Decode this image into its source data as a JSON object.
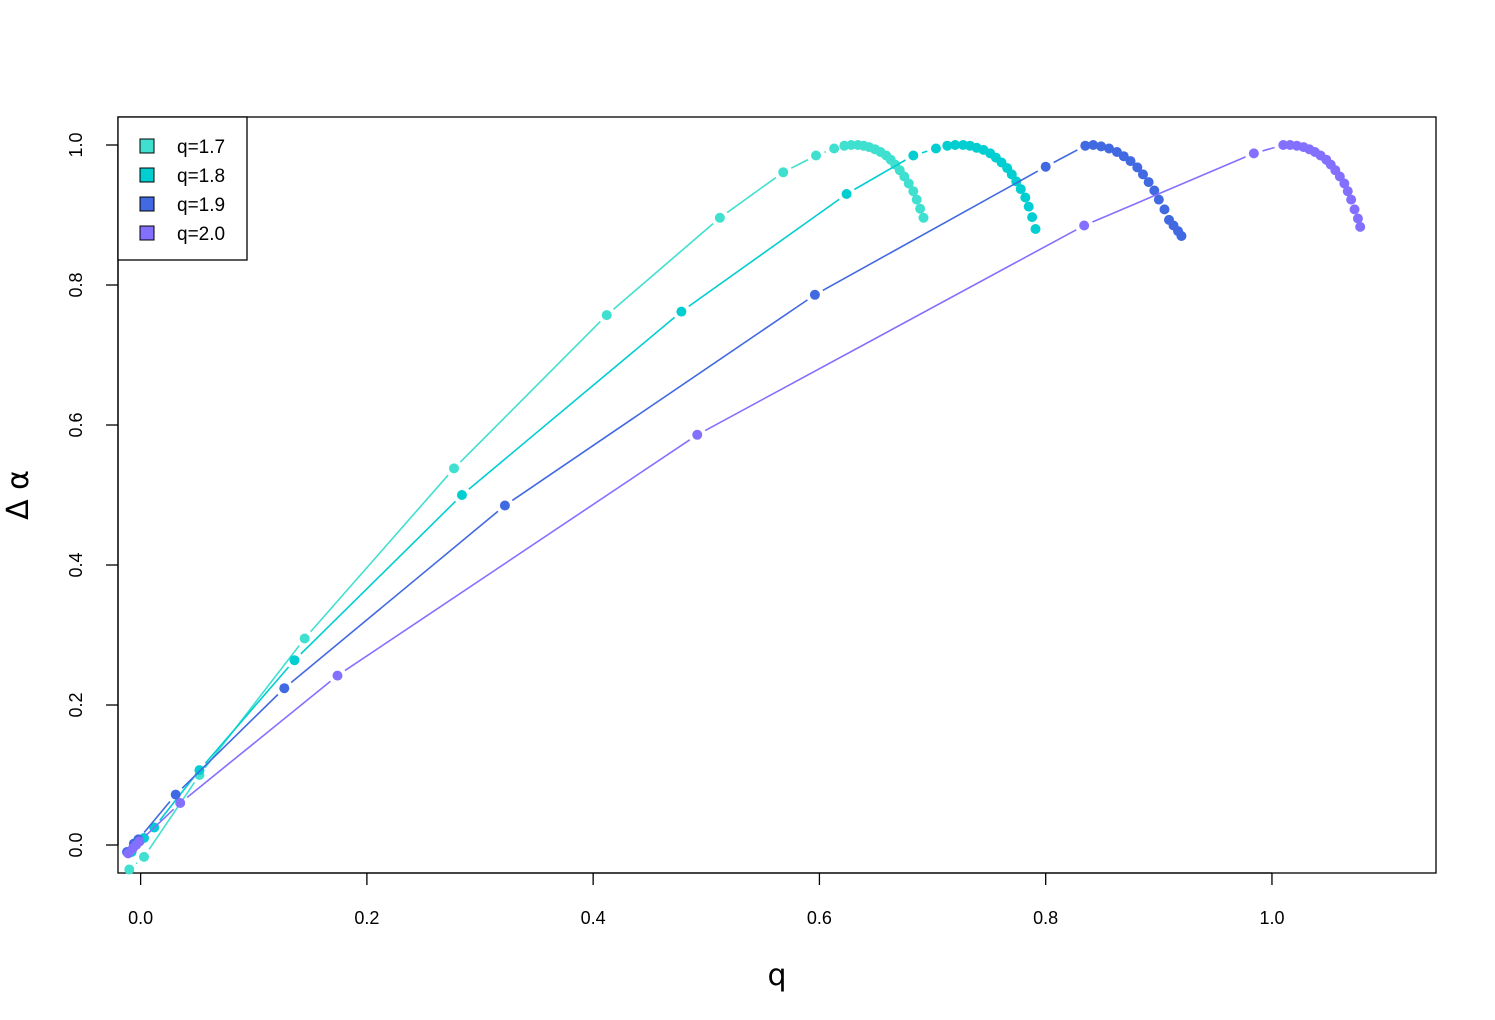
{
  "chart_data": {
    "type": "line",
    "xlabel": "q",
    "ylabel": "Δ α",
    "xlim": [
      -0.02,
      1.145
    ],
    "ylim": [
      -0.04,
      1.04
    ],
    "x_ticks": [
      0.0,
      0.2,
      0.4,
      0.6,
      0.8,
      1.0
    ],
    "x_tick_labels": [
      "0.0",
      "0.2",
      "0.4",
      "0.6",
      "0.8",
      "1.0"
    ],
    "y_ticks": [
      0.0,
      0.2,
      0.4,
      0.6,
      0.8,
      1.0
    ],
    "y_tick_labels": [
      "0.0",
      "0.2",
      "0.4",
      "0.6",
      "0.8",
      "1.0"
    ],
    "grid": false,
    "legend_position": "top-left",
    "series": [
      {
        "name": "q=1.7",
        "color": "#40E0D0",
        "points": [
          [
            -0.01,
            -0.035
          ],
          [
            0.003,
            -0.017
          ],
          [
            0.052,
            0.1
          ],
          [
            0.145,
            0.295
          ],
          [
            0.277,
            0.538
          ],
          [
            0.412,
            0.757
          ],
          [
            0.512,
            0.896
          ],
          [
            0.568,
            0.961
          ],
          [
            0.597,
            0.985
          ],
          [
            0.613,
            0.995
          ],
          [
            0.622,
            0.999
          ],
          [
            0.628,
            1.0
          ],
          [
            0.634,
            1.0
          ],
          [
            0.639,
            0.999
          ],
          [
            0.644,
            0.997
          ],
          [
            0.649,
            0.994
          ],
          [
            0.654,
            0.99
          ],
          [
            0.659,
            0.985
          ],
          [
            0.663,
            0.979
          ],
          [
            0.667,
            0.972
          ],
          [
            0.671,
            0.964
          ],
          [
            0.675,
            0.955
          ],
          [
            0.679,
            0.945
          ],
          [
            0.683,
            0.934
          ],
          [
            0.686,
            0.922
          ],
          [
            0.689,
            0.909
          ],
          [
            0.692,
            0.896
          ]
        ]
      },
      {
        "name": "q=1.8",
        "color": "#00CED1",
        "points": [
          [
            -0.008,
            -0.01
          ],
          [
            0.003,
            0.01
          ],
          [
            0.012,
            0.025
          ],
          [
            0.052,
            0.107
          ],
          [
            0.136,
            0.264
          ],
          [
            0.284,
            0.5
          ],
          [
            0.478,
            0.762
          ],
          [
            0.624,
            0.93
          ],
          [
            0.683,
            0.985
          ],
          [
            0.703,
            0.995
          ],
          [
            0.713,
            0.999
          ],
          [
            0.72,
            1.0
          ],
          [
            0.727,
            1.0
          ],
          [
            0.733,
            0.999
          ],
          [
            0.739,
            0.996
          ],
          [
            0.745,
            0.993
          ],
          [
            0.751,
            0.988
          ],
          [
            0.756,
            0.982
          ],
          [
            0.761,
            0.975
          ],
          [
            0.766,
            0.967
          ],
          [
            0.77,
            0.958
          ],
          [
            0.774,
            0.948
          ],
          [
            0.778,
            0.937
          ],
          [
            0.782,
            0.925
          ],
          [
            0.785,
            0.912
          ],
          [
            0.788,
            0.897
          ],
          [
            0.791,
            0.88
          ]
        ]
      },
      {
        "name": "q=1.9",
        "color": "#4169E1",
        "points": [
          [
            -0.012,
            -0.01
          ],
          [
            -0.006,
            0.002
          ],
          [
            -0.002,
            0.008
          ],
          [
            0.031,
            0.072
          ],
          [
            0.127,
            0.224
          ],
          [
            0.322,
            0.485
          ],
          [
            0.596,
            0.786
          ],
          [
            0.8,
            0.969
          ],
          [
            0.835,
            0.999
          ],
          [
            0.842,
            1.0
          ],
          [
            0.849,
            0.998
          ],
          [
            0.856,
            0.995
          ],
          [
            0.863,
            0.99
          ],
          [
            0.869,
            0.984
          ],
          [
            0.875,
            0.977
          ],
          [
            0.881,
            0.968
          ],
          [
            0.886,
            0.958
          ],
          [
            0.891,
            0.947
          ],
          [
            0.896,
            0.935
          ],
          [
            0.9,
            0.922
          ],
          [
            0.905,
            0.908
          ],
          [
            0.909,
            0.893
          ],
          [
            0.913,
            0.885
          ],
          [
            0.917,
            0.877
          ],
          [
            0.92,
            0.87
          ]
        ]
      },
      {
        "name": "q=2.0",
        "color": "#8470FF",
        "points": [
          [
            -0.011,
            -0.012
          ],
          [
            -0.007,
            -0.005
          ],
          [
            -0.004,
            0.0
          ],
          [
            -0.001,
            0.005
          ],
          [
            0.035,
            0.06
          ],
          [
            0.174,
            0.242
          ],
          [
            0.492,
            0.586
          ],
          [
            0.834,
            0.885
          ],
          [
            0.984,
            0.988
          ],
          [
            1.01,
            1.0
          ],
          [
            1.016,
            1.0
          ],
          [
            1.022,
            0.999
          ],
          [
            1.028,
            0.997
          ],
          [
            1.033,
            0.994
          ],
          [
            1.038,
            0.99
          ],
          [
            1.043,
            0.985
          ],
          [
            1.048,
            0.979
          ],
          [
            1.052,
            0.972
          ],
          [
            1.056,
            0.964
          ],
          [
            1.06,
            0.955
          ],
          [
            1.064,
            0.945
          ],
          [
            1.067,
            0.934
          ],
          [
            1.07,
            0.922
          ],
          [
            1.073,
            0.908
          ],
          [
            1.076,
            0.895
          ],
          [
            1.078,
            0.883
          ]
        ]
      }
    ]
  }
}
